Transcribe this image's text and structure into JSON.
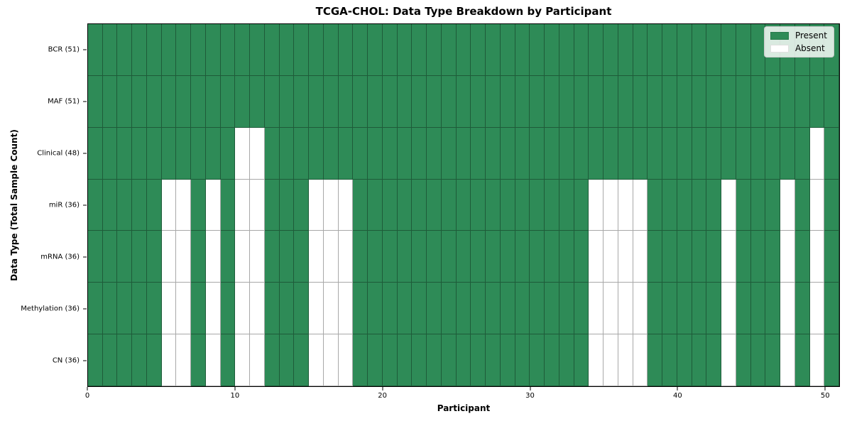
{
  "chart_data": {
    "type": "heatmap",
    "title": "TCGA-CHOL: Data Type Breakdown by Participant",
    "xlabel": "Participant",
    "ylabel": "Data Type (Total Sample Count)",
    "n_participants": 51,
    "x_ticks": [
      0,
      10,
      20,
      30,
      40,
      50
    ],
    "grid": true,
    "legend_position": "upper right",
    "colors": {
      "present": "#2e8b57",
      "absent": "#ffffff",
      "grid_line": "rgba(0,0,0,0.34)"
    },
    "legend": [
      {
        "label": "Present",
        "color": "#2e8b57"
      },
      {
        "label": "Absent",
        "color": "#ffffff"
      }
    ],
    "rows": [
      {
        "label": "BCR (51)",
        "data_type": "BCR",
        "present_count": 51,
        "absent_participants": []
      },
      {
        "label": "MAF (51)",
        "data_type": "MAF",
        "present_count": 51,
        "absent_participants": []
      },
      {
        "label": "Clinical (48)",
        "data_type": "Clinical",
        "present_count": 48,
        "absent_participants": [
          10,
          11,
          49
        ]
      },
      {
        "label": "miR (36)",
        "data_type": "miR",
        "present_count": 36,
        "absent_participants": [
          5,
          6,
          8,
          10,
          11,
          15,
          16,
          17,
          34,
          35,
          36,
          37,
          43,
          47,
          49
        ]
      },
      {
        "label": "mRNA (36)",
        "data_type": "mRNA",
        "present_count": 36,
        "absent_participants": [
          5,
          6,
          8,
          10,
          11,
          15,
          16,
          17,
          34,
          35,
          36,
          37,
          43,
          47,
          49
        ]
      },
      {
        "label": "Methylation (36)",
        "data_type": "Methylation",
        "present_count": 36,
        "absent_participants": [
          5,
          6,
          8,
          10,
          11,
          15,
          16,
          17,
          34,
          35,
          36,
          37,
          43,
          47,
          49
        ]
      },
      {
        "label": "CN (36)",
        "data_type": "CN",
        "present_count": 36,
        "absent_participants": [
          5,
          6,
          8,
          10,
          11,
          15,
          16,
          17,
          34,
          35,
          36,
          37,
          43,
          47,
          49
        ]
      }
    ]
  }
}
